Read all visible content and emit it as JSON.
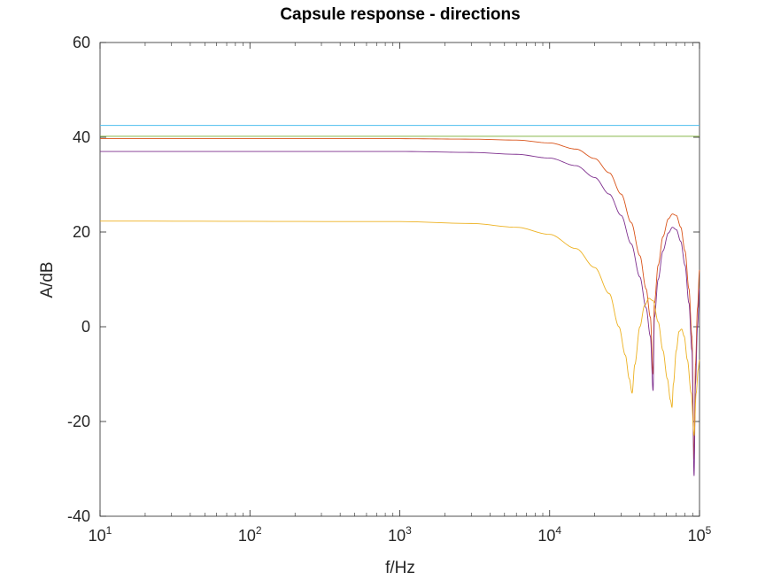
{
  "chart_data": {
    "type": "line",
    "title": "Capsule response - directions",
    "xlabel": "f/Hz",
    "ylabel": "A/dB",
    "xscale": "log",
    "xlim": [
      10,
      100000
    ],
    "ylim": [
      -40,
      60
    ],
    "grid": false,
    "legend": "none",
    "yticks": [
      "-40",
      "-20",
      "0",
      "20",
      "40",
      "60"
    ],
    "xticks": [
      {
        "base": "10",
        "exp": "1"
      },
      {
        "base": "10",
        "exp": "2"
      },
      {
        "base": "10",
        "exp": "3"
      },
      {
        "base": "10",
        "exp": "4"
      },
      {
        "base": "10",
        "exp": "5"
      }
    ],
    "series": [
      {
        "color": "#4DBEEE",
        "points": [
          [
            10,
            42.5
          ],
          [
            100000,
            42.5
          ]
        ]
      },
      {
        "color": "#77AC30",
        "points": [
          [
            10,
            40.2
          ],
          [
            100000,
            40.2
          ]
        ]
      },
      {
        "color": "#D95319",
        "points": [
          [
            10,
            39.7
          ],
          [
            1000,
            39.7
          ],
          [
            3000,
            39.6
          ],
          [
            6000,
            39.4
          ],
          [
            10000,
            38.8
          ],
          [
            15000,
            37.5
          ],
          [
            20000,
            35.5
          ],
          [
            25000,
            32.5
          ],
          [
            30000,
            28
          ],
          [
            35000,
            22
          ],
          [
            40000,
            15
          ],
          [
            44000,
            8
          ],
          [
            47000,
            2
          ],
          [
            49000,
            -10
          ],
          [
            50000,
            5
          ],
          [
            53000,
            13
          ],
          [
            57000,
            19
          ],
          [
            62000,
            22.8
          ],
          [
            66000,
            23.8
          ],
          [
            70000,
            23.5
          ],
          [
            75000,
            21
          ],
          [
            80000,
            16
          ],
          [
            85000,
            8
          ],
          [
            89000,
            -2
          ],
          [
            92000,
            -28
          ],
          [
            94000,
            -8
          ],
          [
            97000,
            4
          ],
          [
            100000,
            12
          ]
        ]
      },
      {
        "color": "#7E2F8E",
        "points": [
          [
            10,
            37
          ],
          [
            1000,
            37
          ],
          [
            3000,
            36.8
          ],
          [
            6000,
            36.4
          ],
          [
            10000,
            35.6
          ],
          [
            15000,
            34
          ],
          [
            20000,
            31.5
          ],
          [
            25000,
            28
          ],
          [
            30000,
            23.5
          ],
          [
            35000,
            17.5
          ],
          [
            40000,
            10.5
          ],
          [
            44000,
            4
          ],
          [
            47000,
            -2
          ],
          [
            49000,
            -13.5
          ],
          [
            50000,
            2
          ],
          [
            53000,
            10
          ],
          [
            57000,
            16
          ],
          [
            62000,
            19.8
          ],
          [
            66000,
            21
          ],
          [
            70000,
            20.5
          ],
          [
            75000,
            18
          ],
          [
            80000,
            13
          ],
          [
            85000,
            5
          ],
          [
            89000,
            -5
          ],
          [
            92000,
            -31.5
          ],
          [
            94000,
            -12
          ],
          [
            97000,
            0
          ],
          [
            100000,
            8
          ]
        ]
      },
      {
        "color": "#EDB120",
        "points": [
          [
            10,
            22.3
          ],
          [
            1000,
            22.2
          ],
          [
            3000,
            21.8
          ],
          [
            6000,
            21
          ],
          [
            10000,
            19.5
          ],
          [
            15000,
            16.5
          ],
          [
            20000,
            12.5
          ],
          [
            25000,
            7
          ],
          [
            29000,
            0
          ],
          [
            32000,
            -6
          ],
          [
            34000,
            -11
          ],
          [
            35500,
            -14
          ],
          [
            37000,
            -8
          ],
          [
            40000,
            0
          ],
          [
            43000,
            4.5
          ],
          [
            46000,
            6
          ],
          [
            49000,
            5.5
          ],
          [
            53000,
            1
          ],
          [
            57000,
            -5
          ],
          [
            61000,
            -11
          ],
          [
            64000,
            -15.5
          ],
          [
            65500,
            -17
          ],
          [
            67000,
            -12
          ],
          [
            70000,
            -5
          ],
          [
            73000,
            -1
          ],
          [
            76000,
            -0.5
          ],
          [
            79000,
            -2
          ],
          [
            83000,
            -7
          ],
          [
            88000,
            -14
          ],
          [
            92000,
            -23
          ],
          [
            95000,
            -14
          ],
          [
            98000,
            -9
          ],
          [
            100000,
            -7
          ]
        ]
      }
    ]
  }
}
